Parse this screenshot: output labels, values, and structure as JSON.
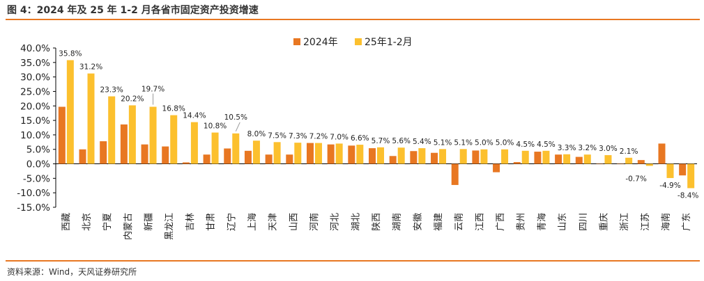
{
  "title": "图 4：2024 年及 25 年 1-2 月各省市固定资产投资增速",
  "source": "资料来源：Wind，天风证券研究所",
  "chart_data": {
    "type": "bar",
    "categories": [
      "西藏",
      "北京",
      "宁夏",
      "内蒙古",
      "新疆",
      "黑龙江",
      "吉林",
      "甘肃",
      "辽宁",
      "上海",
      "天津",
      "山西",
      "河南",
      "河北",
      "湖北",
      "陕西",
      "湖南",
      "安徽",
      "福建",
      "云南",
      "江西",
      "广西",
      "贵州",
      "青海",
      "山东",
      "四川",
      "重庆",
      "浙江",
      "江苏",
      "海南",
      "广东"
    ],
    "series": [
      {
        "name": "2024年",
        "color": "#E87722",
        "values": [
          19.7,
          5.0,
          7.8,
          13.6,
          6.7,
          6.0,
          0.5,
          3.2,
          5.3,
          4.5,
          3.2,
          3.2,
          7.2,
          6.7,
          6.3,
          5.4,
          2.7,
          4.4,
          3.8,
          -7.3,
          4.6,
          -2.9,
          0.6,
          4.2,
          3.2,
          2.4,
          0.0,
          0.0,
          1.3,
          7.0,
          -4.0
        ]
      },
      {
        "name": "25年1-2月",
        "color": "#FCC02E",
        "values": [
          35.8,
          31.2,
          23.3,
          20.2,
          19.7,
          16.8,
          14.4,
          10.8,
          10.5,
          8.0,
          7.5,
          7.3,
          7.2,
          7.0,
          6.6,
          5.7,
          5.6,
          5.4,
          5.1,
          5.1,
          5.0,
          5.0,
          4.5,
          4.5,
          3.3,
          3.2,
          3.0,
          2.1,
          -0.7,
          -4.9,
          -8.4
        ]
      }
    ],
    "data_labels": [
      "35.8%",
      "31.2%",
      "23.3%",
      "20.2%",
      "19.7%",
      "16.8%",
      "14.4%",
      "10.8%",
      "10.5%",
      "8.0%",
      "7.5%",
      "7.3%",
      "7.2%",
      "7.0%",
      "6.6%",
      "5.7%",
      "5.6%",
      "5.4%",
      "5.1%",
      "5.1%",
      "5.0%",
      "5.0%",
      "4.5%",
      "4.5%",
      "3.3%",
      "3.2%",
      "3.0%",
      "2.1%",
      "-0.7%",
      "-4.9%",
      "-8.4%"
    ],
    "y_ticks": [
      "40.0%",
      "35.0%",
      "30.0%",
      "25.0%",
      "20.0%",
      "15.0%",
      "10.0%",
      "5.0%",
      "0.0%",
      "-5.0%",
      "-10.0%",
      "-15.0%"
    ],
    "ylim": [
      -15,
      40
    ],
    "legend_position": "top",
    "grid": false
  }
}
